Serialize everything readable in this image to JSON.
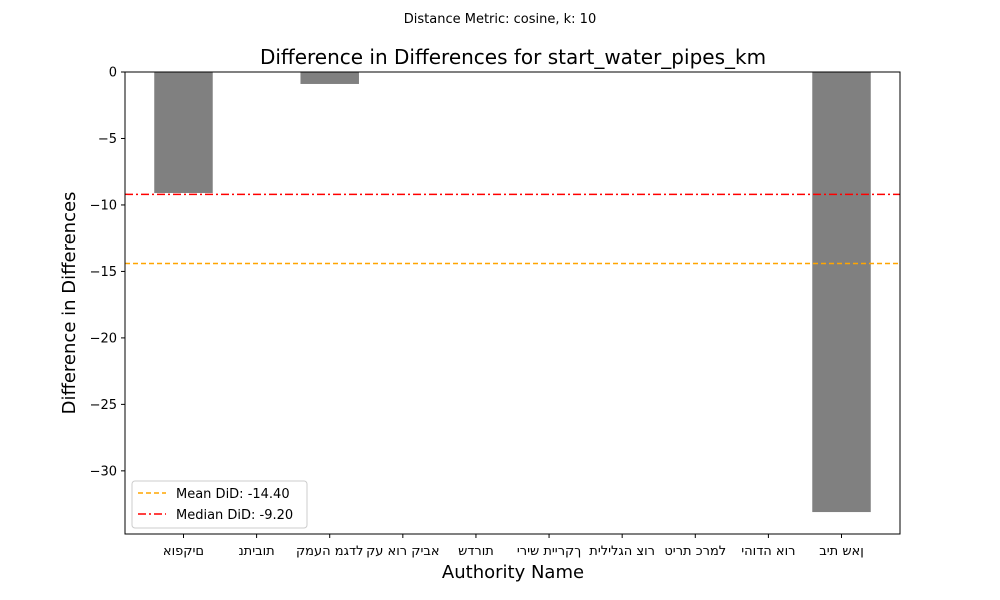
{
  "chart_data": {
    "type": "bar",
    "suptitle": "Distance Metric: cosine, k: 10",
    "title": "Difference in Differences for start_water_pipes_km",
    "xlabel": "Authority Name",
    "ylabel": "Difference in Differences",
    "categories": [
      "םיקפוא",
      "תוביתנ",
      "לדגמ העמק",
      "אביק רוא עק",
      "תורדש",
      "ךקריית שירי",
      "רוצ הגלילית",
      "למרכ תריט",
      "רוא הדוהי",
      "ןאש תיב"
    ],
    "values": [
      -9.1,
      0,
      -0.9,
      0,
      0,
      0,
      0,
      0,
      0,
      -33.1
    ],
    "yticks": [
      0,
      -5,
      -10,
      -15,
      -20,
      -25,
      -30
    ],
    "ylim": [
      -34.75,
      0
    ],
    "bar_color": "#808080",
    "grid": false,
    "legend_position": "lower-left",
    "reference_lines": [
      {
        "label": "Mean DiD: -14.40",
        "value": -14.4,
        "color": "#ffa500",
        "style": "dashed"
      },
      {
        "label": "Median DiD: -9.20",
        "value": -9.2,
        "color": "#ff0000",
        "style": "dashdot"
      }
    ]
  }
}
